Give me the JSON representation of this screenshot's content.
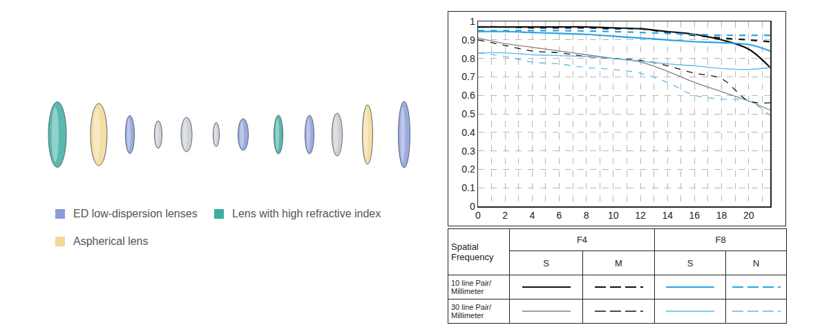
{
  "chart_data": {
    "type": "line",
    "xlim": [
      0,
      21.6
    ],
    "xticks": [
      0,
      2,
      4,
      6,
      8,
      10,
      12,
      14,
      16,
      18,
      20
    ],
    "ylim": [
      0,
      1
    ],
    "yticks": [
      0,
      0.1,
      0.2,
      0.3,
      0.4,
      0.5,
      0.6,
      0.7,
      0.8,
      0.9,
      1
    ],
    "grid": true,
    "x": [
      0,
      2,
      4,
      6,
      8,
      10,
      12,
      14,
      16,
      18,
      20,
      21.6
    ],
    "series": [
      {
        "frequency": "10 line Pair/ Millimeter",
        "aperture": "F4",
        "direction": "S",
        "color": "#111111",
        "line_style": "solid",
        "values": [
          0.97,
          0.97,
          0.97,
          0.97,
          0.97,
          0.965,
          0.96,
          0.945,
          0.93,
          0.9,
          0.85,
          0.75
        ]
      },
      {
        "frequency": "10 line Pair/ Millimeter",
        "aperture": "F4",
        "direction": "M",
        "color": "#111111",
        "line_style": "dash",
        "values": [
          0.97,
          0.97,
          0.965,
          0.965,
          0.965,
          0.96,
          0.96,
          0.94,
          0.925,
          0.91,
          0.9,
          0.89
        ]
      },
      {
        "frequency": "10 line Pair/ Millimeter",
        "aperture": "F8",
        "direction": "S",
        "color": "#29a3e3",
        "line_style": "solid",
        "values": [
          0.945,
          0.945,
          0.94,
          0.935,
          0.93,
          0.92,
          0.91,
          0.9,
          0.89,
          0.885,
          0.875,
          0.84
        ]
      },
      {
        "frequency": "10 line Pair/ Millimeter",
        "aperture": "F8",
        "direction": "N",
        "color": "#29a3e3",
        "line_style": "dash",
        "values": [
          0.95,
          0.95,
          0.95,
          0.95,
          0.948,
          0.945,
          0.94,
          0.935,
          0.93,
          0.925,
          0.925,
          0.925
        ]
      },
      {
        "frequency": "30 line Pair/ Millimeter",
        "aperture": "F4",
        "direction": "S",
        "color": "#808080",
        "line_style": "solid",
        "values": [
          0.91,
          0.88,
          0.86,
          0.84,
          0.82,
          0.8,
          0.78,
          0.73,
          0.67,
          0.62,
          0.57,
          0.52
        ]
      },
      {
        "frequency": "30 line Pair/ Millimeter",
        "aperture": "F4",
        "direction": "M",
        "color": "#111111",
        "line_style": "dash",
        "values": [
          0.9,
          0.87,
          0.84,
          0.83,
          0.81,
          0.8,
          0.79,
          0.76,
          0.72,
          0.69,
          0.57,
          0.56
        ]
      },
      {
        "frequency": "30 line Pair/ Millimeter",
        "aperture": "F8",
        "direction": "S",
        "color": "#5bb8ea",
        "line_style": "solid",
        "values": [
          0.83,
          0.83,
          0.82,
          0.815,
          0.81,
          0.8,
          0.785,
          0.77,
          0.76,
          0.745,
          0.74,
          0.75
        ]
      },
      {
        "frequency": "30 line Pair/ Millimeter",
        "aperture": "F8",
        "direction": "N",
        "color": "#5bb8ea",
        "line_style": "dash",
        "values": [
          0.83,
          0.81,
          0.78,
          0.77,
          0.75,
          0.74,
          0.72,
          0.67,
          0.6,
          0.58,
          0.57,
          0.49
        ]
      }
    ]
  },
  "key_table": {
    "header": "Spatial Frequency"
  },
  "diagram": {
    "legend": [
      {
        "label": "ED low-dispersion lenses",
        "color": "#8b9bd9"
      },
      {
        "label": "Lens with high refractive index",
        "color": "#3bada0"
      },
      {
        "label": "Aspherical lens",
        "color": "#f2d894"
      }
    ]
  }
}
